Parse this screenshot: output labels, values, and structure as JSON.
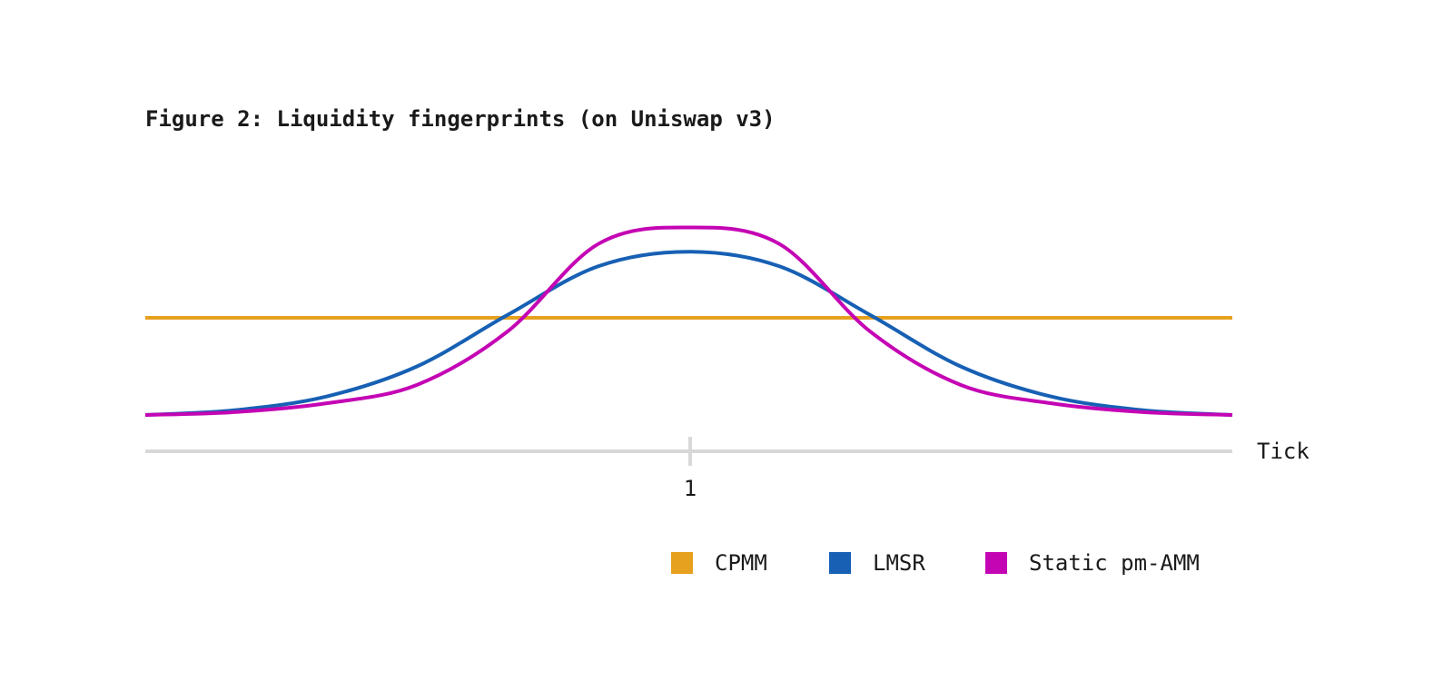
{
  "chart_data": {
    "type": "line",
    "title": "Figure 2: Liquidity fingerprints (on Uniswap v3)",
    "xlabel": "Tick",
    "ylabel": "",
    "x_ticks": [
      "1"
    ],
    "x": [
      -3,
      -2.5,
      -2,
      -1.5,
      -1,
      -0.5,
      0,
      0.5,
      1,
      1.5,
      2,
      2.5,
      3
    ],
    "xlim": [
      -3,
      3
    ],
    "ylim": [
      0,
      1.9
    ],
    "grid": false,
    "legend_position": "bottom-right",
    "series": [
      {
        "name": "CPMM",
        "color": "#E6A11E",
        "values": [
          1,
          1,
          1,
          1,
          1,
          1,
          1,
          1,
          1,
          1,
          1,
          1,
          1
        ]
      },
      {
        "name": "LMSR",
        "color": "#1760B4",
        "values": [
          0,
          0.05,
          0.19,
          0.5,
          1.03,
          1.53,
          1.68,
          1.53,
          1.03,
          0.5,
          0.19,
          0.05,
          0
        ]
      },
      {
        "name": "Static pm-AMM",
        "color": "#C405B4",
        "values": [
          0,
          0.03,
          0.12,
          0.31,
          0.86,
          1.76,
          1.93,
          1.76,
          0.86,
          0.31,
          0.12,
          0.03,
          0
        ]
      }
    ]
  }
}
